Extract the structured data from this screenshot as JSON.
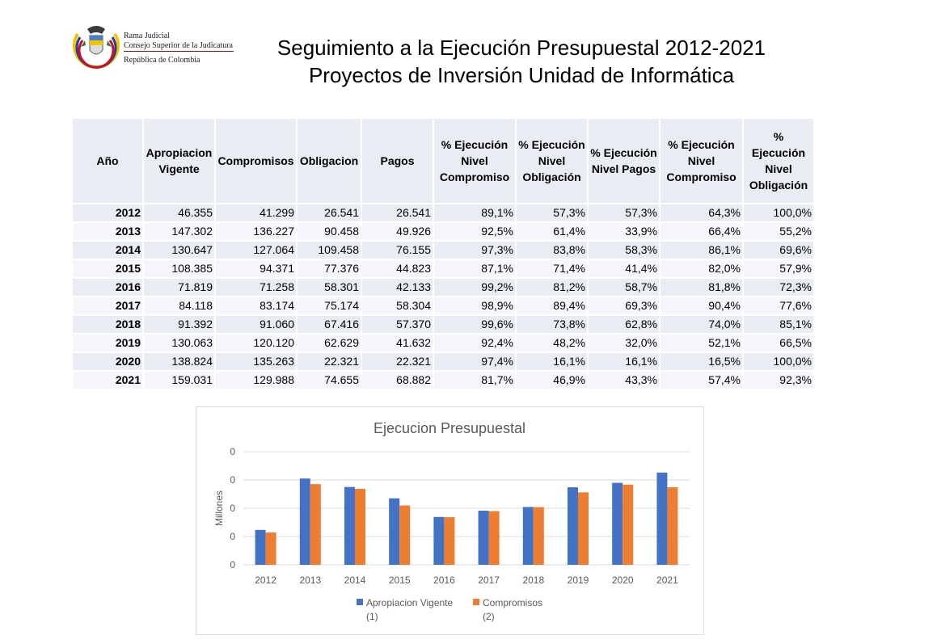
{
  "logo": {
    "line1": "Rama Judicial",
    "line2": "Consejo Superior de la Judicatura",
    "line3": "República de Colombia"
  },
  "title": {
    "line1": "Seguimiento a la Ejecución Presupuestal 2012-2021",
    "line2": "Proyectos de Inversión Unidad de Informática"
  },
  "table": {
    "headers": [
      "Año",
      "Apropiacion Vigente",
      "Compromisos",
      "Obligacion",
      "Pagos",
      "% Ejecución Nivel Compromiso",
      "% Ejecución Nivel Obligación",
      "% Ejecución Nivel Pagos",
      "% Ejecución Nivel Compromiso",
      "% Ejecución Nivel Obligación"
    ],
    "rows": [
      [
        "2012",
        "46.355",
        "41.299",
        "26.541",
        "26.541",
        "89,1%",
        "57,3%",
        "57,3%",
        "64,3%",
        "100,0%"
      ],
      [
        "2013",
        "147.302",
        "136.227",
        "90.458",
        "49.926",
        "92,5%",
        "61,4%",
        "33,9%",
        "66,4%",
        "55,2%"
      ],
      [
        "2014",
        "130.647",
        "127.064",
        "109.458",
        "76.155",
        "97,3%",
        "83,8%",
        "58,3%",
        "86,1%",
        "69,6%"
      ],
      [
        "2015",
        "108.385",
        "94.371",
        "77.376",
        "44.823",
        "87,1%",
        "71,4%",
        "41,4%",
        "82,0%",
        "57,9%"
      ],
      [
        "2016",
        "71.819",
        "71.258",
        "58.301",
        "42.133",
        "99,2%",
        "81,2%",
        "58,7%",
        "81,8%",
        "72,3%"
      ],
      [
        "2017",
        "84.118",
        "83.174",
        "75.174",
        "58.304",
        "98,9%",
        "89,4%",
        "69,3%",
        "90,4%",
        "77,6%"
      ],
      [
        "2018",
        "91.392",
        "91.060",
        "67.416",
        "57.370",
        "99,6%",
        "73,8%",
        "62,8%",
        "74,0%",
        "85,1%"
      ],
      [
        "2019",
        "130.063",
        "120.120",
        "62.629",
        "41.632",
        "92,4%",
        "48,2%",
        "32,0%",
        "52,1%",
        "66,5%"
      ],
      [
        "2020",
        "138.824",
        "135.263",
        "22.321",
        "22.321",
        "97,4%",
        "16,1%",
        "16,1%",
        "16,5%",
        "100,0%"
      ],
      [
        "2021",
        "159.031",
        "129.988",
        "74.655",
        "68.882",
        "81,7%",
        "46,9%",
        "43,3%",
        "57,4%",
        "92,3%"
      ]
    ]
  },
  "chart_data": {
    "type": "bar",
    "title": "Ejecucion Presupuestal",
    "ylabel": "Millones",
    "xlabel": "",
    "categories": [
      "2012",
      "2013",
      "2014",
      "2015",
      "2016",
      "2017",
      "2018",
      "2019",
      "2020",
      "2021"
    ],
    "series": [
      {
        "name": "Apropiacion Vigente",
        "note": "(1)",
        "color": "#4472c4",
        "values": [
          46355,
          147302,
          130647,
          108385,
          71819,
          84118,
          91392,
          130063,
          138824,
          159031
        ]
      },
      {
        "name": "Compromisos",
        "note": "(2)",
        "color": "#ed7d31",
        "values": [
          41299,
          136227,
          127064,
          94371,
          71258,
          83174,
          91060,
          120120,
          135263,
          129988
        ]
      }
    ],
    "ylim": [
      0,
      200000
    ],
    "yticks": [
      "0",
      "0",
      "0",
      "0",
      "0"
    ],
    "yaxis_base_fraction": 0.1,
    "grid": true,
    "legend_position": "bottom",
    "grid_color": "#d9d9d9",
    "label_color": "#595959"
  }
}
